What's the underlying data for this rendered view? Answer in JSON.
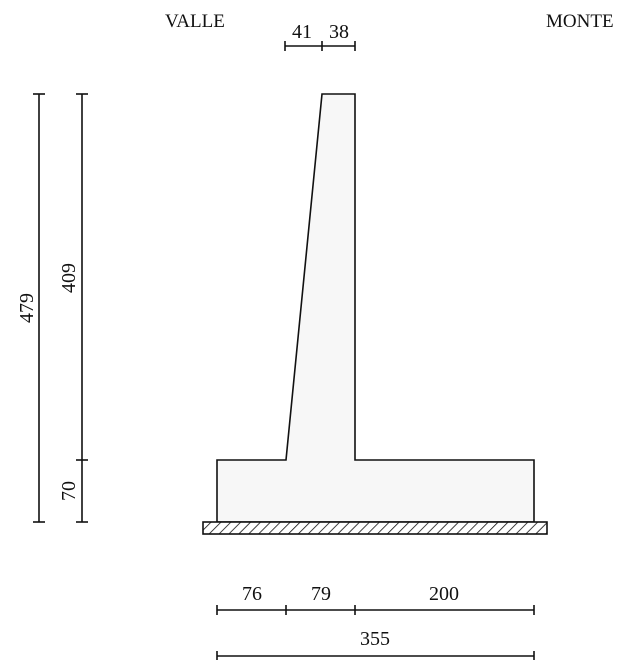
{
  "labels": {
    "left_side": "VALLE",
    "right_side": "MONTE"
  },
  "dimensions": {
    "top_left": "41",
    "top_right": "38",
    "total_height": "479",
    "stem_height": "409",
    "base_height": "70",
    "toe": "76",
    "stem_base": "79",
    "heel": "200",
    "total_width": "355"
  }
}
